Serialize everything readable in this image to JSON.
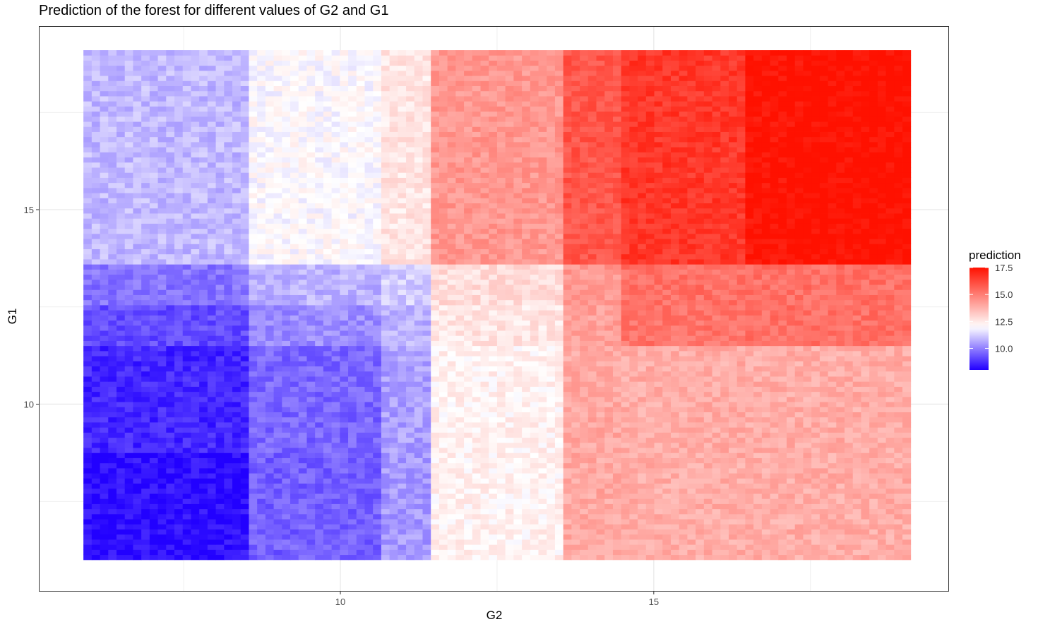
{
  "title": "Prediction of the forest for different values of G2 and G1",
  "chart_data": {
    "type": "heatmap",
    "title": "Prediction of the forest for different values of G2 and G1",
    "xlabel": "G2",
    "ylabel": "G1",
    "xlim": [
      5.2,
      19.7
    ],
    "ylim": [
      5.2,
      19.7
    ],
    "x_ticks": [
      10,
      15
    ],
    "y_ticks": [
      10,
      15
    ],
    "x_range": [
      5.9,
      19.1
    ],
    "y_range": [
      6.0,
      19.1
    ],
    "grid": true,
    "x_breaks": [
      8.5,
      10.6,
      11.5,
      13.6,
      14.5,
      16.5,
      17.4
    ],
    "y_breaks": [
      8.7,
      11.5,
      12.6,
      13.6
    ],
    "region_values": [
      [
        8.2,
        9.5,
        10.4,
        12.3,
        14.0,
        13.9,
        13.9,
        13.9
      ],
      [
        8.6,
        9.6,
        10.5,
        12.3,
        14.0,
        13.9,
        13.9,
        13.9
      ],
      [
        9.2,
        10.2,
        10.8,
        12.6,
        14.2,
        15.2,
        15.3,
        15.3
      ],
      [
        9.8,
        10.8,
        11.2,
        12.8,
        14.4,
        15.3,
        15.3,
        15.3
      ],
      [
        10.9,
        12.0,
        12.6,
        14.4,
        15.9,
        16.6,
        17.5,
        17.6
      ]
    ],
    "legend": {
      "title": "prediction",
      "ticks": [
        10.0,
        12.5,
        15.0,
        17.5
      ],
      "tick_labels": [
        "10.0",
        "12.5",
        "15.0",
        "17.5"
      ],
      "range": [
        8.0,
        17.5
      ],
      "colors": {
        "low": "#2200ff",
        "mid": "#ffffff",
        "high": "#ff1100"
      },
      "midpoint": 12.0,
      "placement": "right"
    }
  }
}
